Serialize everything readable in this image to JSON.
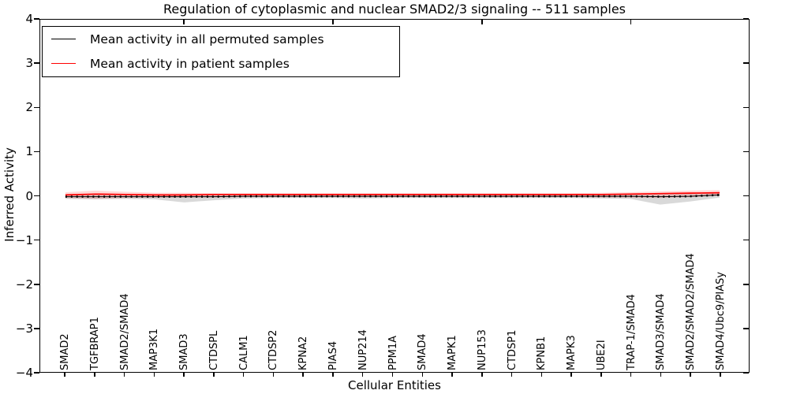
{
  "figure": {
    "title": "Regulation of cytoplasmic and nuclear SMAD2/3 signaling -- 511 samples",
    "xlabel": "Cellular Entities",
    "ylabel": "Inferred Activity",
    "yticks": [
      "4",
      "3",
      "2",
      "1",
      "0",
      "−1",
      "−2",
      "−3",
      "−4"
    ]
  },
  "legend": {
    "entries": [
      {
        "label": "Mean activity in all permuted samples",
        "color": "#000000"
      },
      {
        "label": "Mean activity in patient samples",
        "color": "#ff0000"
      }
    ]
  },
  "chart_data": {
    "type": "line",
    "title": "Regulation of cytoplasmic and nuclear SMAD2/3 signaling -- 511 samples",
    "xlabel": "Cellular Entities",
    "ylabel": "Inferred Activity",
    "ylim": [
      -4,
      4
    ],
    "grid": false,
    "legend_position": "upper left",
    "sample_count": 511,
    "categories": [
      "SMAD2",
      "TGFBRAP1",
      "SMAD2/SMAD4",
      "MAP3K1",
      "SMAD3",
      "CTDSPL",
      "CALM1",
      "CTDSP2",
      "KPNA2",
      "PIAS4",
      "NUP214",
      "PPM1A",
      "SMAD4",
      "MAPK1",
      "NUP153",
      "CTDSP1",
      "KPNB1",
      "MAPK3",
      "UBE2I",
      "TRAP-1/SMAD4",
      "SMAD3/SMAD4",
      "SMAD2/SMAD2/SMAD4",
      "SMAD4/Ubc9/PIASy"
    ],
    "series": [
      {
        "name": "Mean activity in all permuted samples",
        "color": "#000000",
        "style": "dotted-markers",
        "values": [
          -0.02,
          -0.02,
          -0.02,
          -0.02,
          -0.02,
          -0.02,
          -0.01,
          -0.01,
          -0.01,
          -0.01,
          -0.01,
          -0.01,
          -0.01,
          -0.01,
          -0.01,
          -0.01,
          -0.01,
          -0.01,
          -0.01,
          -0.01,
          -0.02,
          -0.01,
          0.02
        ]
      },
      {
        "name": "Mean activity in patient samples",
        "color": "#ff0000",
        "style": "solid",
        "values": [
          0.02,
          0.04,
          0.03,
          0.02,
          0.02,
          0.03,
          0.03,
          0.03,
          0.03,
          0.03,
          0.03,
          0.03,
          0.03,
          0.03,
          0.03,
          0.03,
          0.03,
          0.03,
          0.03,
          0.04,
          0.05,
          0.06,
          0.07
        ]
      }
    ],
    "bands": [
      {
        "name": "permuted-samples-spread",
        "fill": "rgba(0,0,0,0.15)",
        "upper": [
          0.03,
          0.04,
          0.03,
          0.03,
          0.04,
          0.03,
          0.03,
          0.03,
          0.03,
          0.03,
          0.03,
          0.03,
          0.03,
          0.03,
          0.03,
          0.03,
          0.03,
          0.03,
          0.04,
          0.04,
          0.05,
          0.05,
          0.06
        ],
        "lower": [
          -0.07,
          -0.08,
          -0.07,
          -0.08,
          -0.15,
          -0.1,
          -0.06,
          -0.05,
          -0.05,
          -0.05,
          -0.06,
          -0.05,
          -0.05,
          -0.05,
          -0.05,
          -0.05,
          -0.05,
          -0.05,
          -0.06,
          -0.07,
          -0.2,
          -0.13,
          -0.04
        ]
      },
      {
        "name": "patient-samples-spread",
        "fill": "rgba(255,0,0,0.15)",
        "upper": [
          0.08,
          0.12,
          0.09,
          0.07,
          0.07,
          0.06,
          0.06,
          0.06,
          0.06,
          0.06,
          0.06,
          0.06,
          0.06,
          0.06,
          0.06,
          0.06,
          0.06,
          0.06,
          0.07,
          0.08,
          0.1,
          0.12,
          0.13
        ],
        "lower": [
          -0.05,
          -0.07,
          -0.05,
          -0.04,
          -0.04,
          -0.04,
          -0.03,
          -0.03,
          -0.03,
          -0.03,
          -0.03,
          -0.03,
          -0.03,
          -0.03,
          -0.03,
          -0.03,
          -0.03,
          -0.03,
          -0.04,
          -0.04,
          -0.05,
          -0.03,
          0.0
        ]
      }
    ],
    "top_tick_indices": [
      4,
      9,
      14,
      19
    ]
  }
}
